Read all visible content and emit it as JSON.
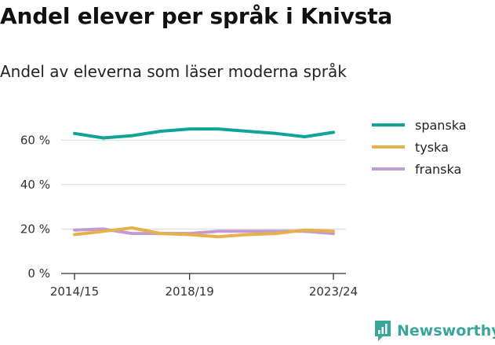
{
  "title": "Andel elever per språk i Knivsta",
  "subtitle": "Andel av eleverna som läser moderna språk",
  "brand": "Newsworthy",
  "colors": {
    "spanska": "#0fa39a",
    "tyska": "#e6b04a",
    "franska": "#c39bd3",
    "brand": "#3aa59a",
    "grid": "#d9d9d9",
    "axis": "#333333"
  },
  "chart_data": {
    "type": "line",
    "title": "Andel elever per språk i Knivsta",
    "subtitle": "Andel av eleverna som läser moderna språk",
    "x": [
      "2014/15",
      "2015/16",
      "2016/17",
      "2017/18",
      "2018/19",
      "2019/20",
      "2020/21",
      "2021/22",
      "2022/23",
      "2023/24"
    ],
    "x_tick_labels": [
      "2014/15",
      "2018/19",
      "2023/24"
    ],
    "y_tick_labels": [
      "0 %",
      "20 %",
      "40 %",
      "60 %"
    ],
    "ylim": [
      0,
      70
    ],
    "yunit": "%",
    "grid": true,
    "legend_position": "right",
    "series": [
      {
        "name": "spanska",
        "values": [
          63,
          61,
          62,
          64,
          65,
          65,
          64,
          63,
          61.5,
          63.5
        ]
      },
      {
        "name": "tyska",
        "values": [
          17.5,
          19,
          20.5,
          18,
          17.5,
          16.5,
          17.5,
          18,
          19.5,
          19
        ]
      },
      {
        "name": "franska",
        "values": [
          19.5,
          20,
          18,
          18,
          18,
          19,
          19,
          19,
          19,
          18
        ]
      }
    ]
  }
}
